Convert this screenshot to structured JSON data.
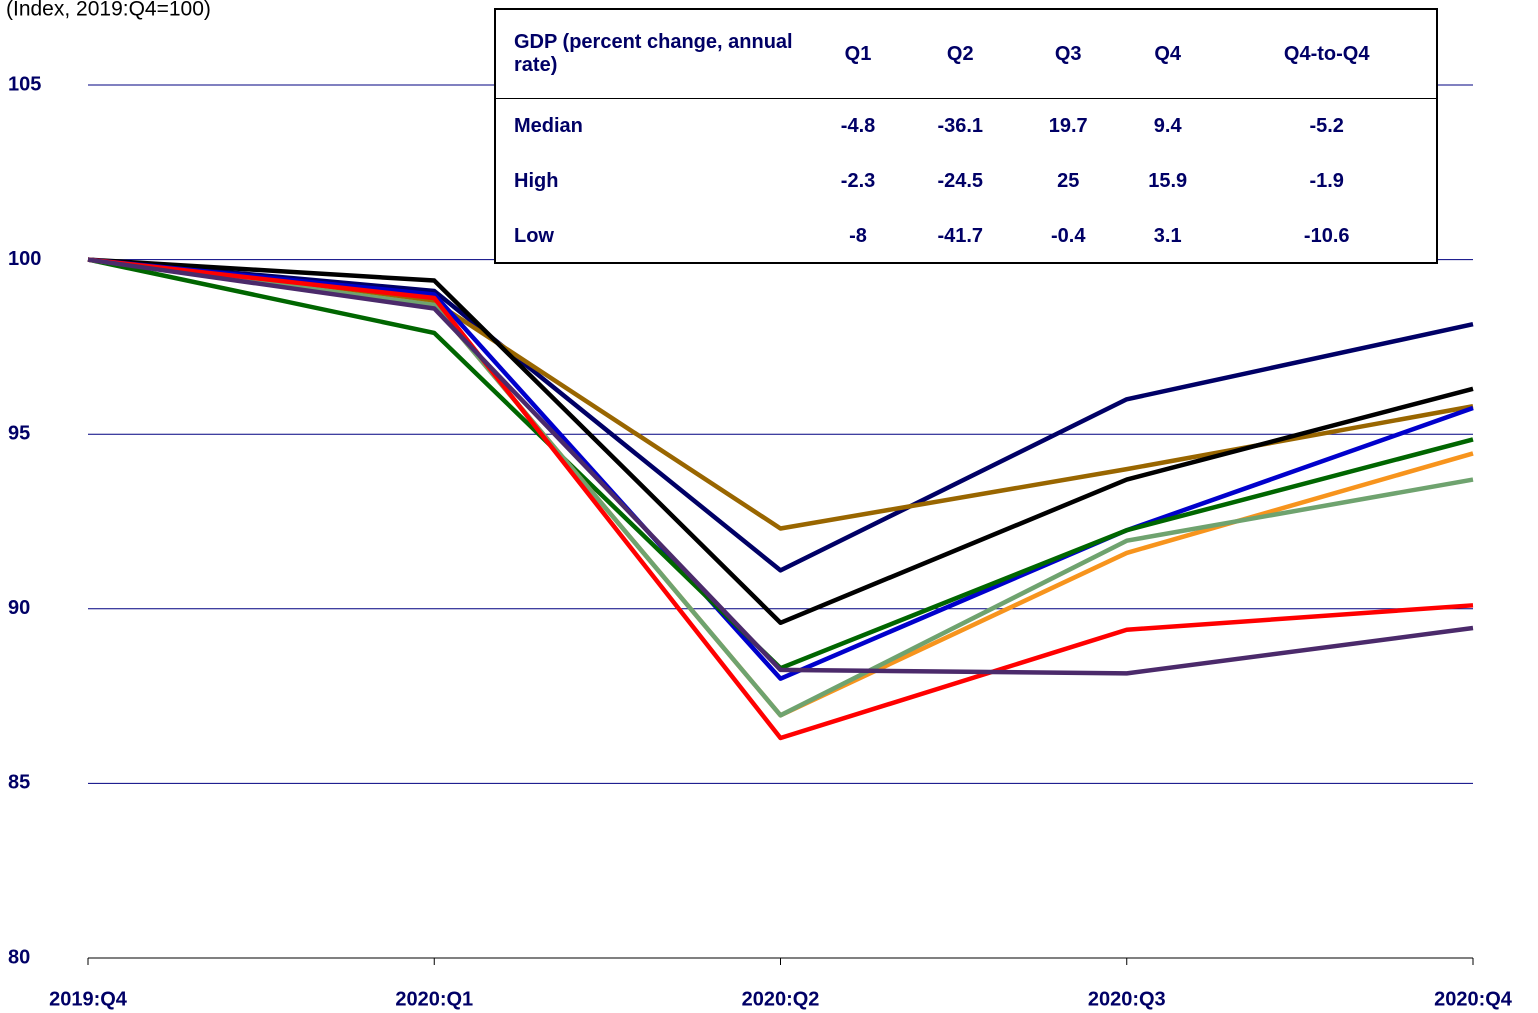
{
  "chart_data": {
    "type": "line",
    "subtitle": "(Index, 2019:Q4=100)",
    "categories": [
      "2019:Q4",
      "2020:Q1",
      "2020:Q2",
      "2020:Q3",
      "2020:Q4"
    ],
    "ylim": [
      80,
      105
    ],
    "yticks": [
      80,
      85,
      90,
      95,
      100,
      105
    ],
    "grid": true,
    "series": [
      {
        "color": "#000066",
        "values": [
          100,
          99.1,
          91.1,
          96.0,
          98.15
        ]
      },
      {
        "color": "#996600",
        "values": [
          100,
          98.8,
          92.3,
          94.0,
          95.8
        ]
      },
      {
        "color": "#000000",
        "values": [
          100,
          99.4,
          89.6,
          93.7,
          96.3
        ]
      },
      {
        "color": "#0000cc",
        "values": [
          100,
          99.0,
          88.0,
          92.25,
          95.75
        ]
      },
      {
        "color": "#006600",
        "values": [
          100,
          97.9,
          88.3,
          92.25,
          94.85
        ]
      },
      {
        "color": "#f7941d",
        "values": [
          100,
          98.7,
          86.95,
          91.6,
          94.45
        ]
      },
      {
        "color": "#6fa36f",
        "values": [
          100,
          98.7,
          86.95,
          91.95,
          93.7
        ]
      },
      {
        "color": "#ff0000",
        "values": [
          100,
          98.9,
          86.3,
          89.4,
          90.1
        ]
      },
      {
        "color": "#4b2a6b",
        "values": [
          100,
          98.6,
          88.25,
          88.15,
          89.45
        ]
      }
    ],
    "table": {
      "header": [
        "GDP (percent change, annual rate)",
        "Q1",
        "Q2",
        "Q3",
        "Q4",
        "Q4-to-Q4"
      ],
      "rows": [
        [
          "Median",
          -4.8,
          -36.1,
          19.7,
          9.4,
          -5.2
        ],
        [
          "High",
          -2.3,
          -24.5,
          25,
          15.9,
          -1.9
        ],
        [
          "Low",
          -8,
          -41.7,
          -0.4,
          3.1,
          -10.6
        ]
      ]
    }
  }
}
